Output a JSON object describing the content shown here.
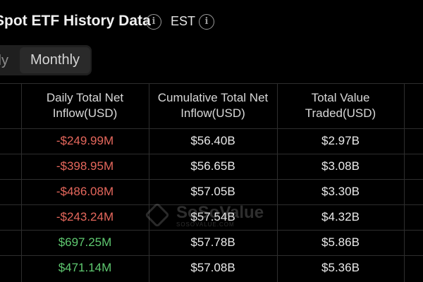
{
  "header": {
    "title": "Spot ETF History Data",
    "timezone_label": "EST",
    "info_icon": "info-icon"
  },
  "tabs": {
    "items": [
      {
        "label": "Daily",
        "active": false
      },
      {
        "label": "Monthly",
        "active": true
      }
    ]
  },
  "table": {
    "columns": [
      "Daily Total Net Inflow(USD)",
      "Cumulative Total Net Inflow(USD)",
      "Total Value Traded(USD)"
    ],
    "rows": [
      {
        "daily": "-$249.99M",
        "cumulative": "$56.40B",
        "traded": "$2.97B",
        "sign": "negative"
      },
      {
        "daily": "-$398.95M",
        "cumulative": "$56.65B",
        "traded": "$3.08B",
        "sign": "negative"
      },
      {
        "daily": "-$486.08M",
        "cumulative": "$57.05B",
        "traded": "$3.30B",
        "sign": "negative"
      },
      {
        "daily": "-$243.24M",
        "cumulative": "$57.54B",
        "traded": "$4.32B",
        "sign": "negative"
      },
      {
        "daily": "$697.25M",
        "cumulative": "$57.78B",
        "traded": "$5.86B",
        "sign": "positive"
      },
      {
        "daily": "$471.14M",
        "cumulative": "$57.08B",
        "traded": "$5.36B",
        "sign": "positive"
      }
    ]
  },
  "watermark": {
    "text": "SoSoValue",
    "subtext": "SOSOVALUE.COM"
  },
  "colors": {
    "negative": "#e5675c",
    "positive": "#5fc970",
    "background": "#000000"
  }
}
